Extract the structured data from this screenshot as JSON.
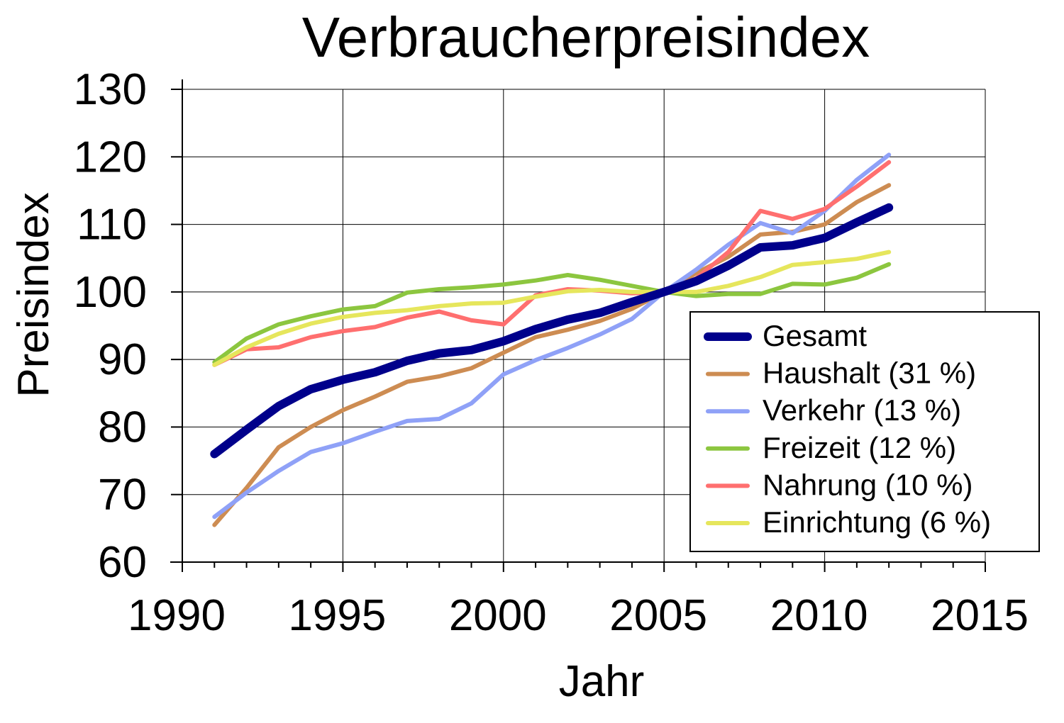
{
  "chart_data": {
    "type": "line",
    "title": "Verbraucherpreisindex",
    "xlabel": "Jahr",
    "ylabel": "Preisindex",
    "xlim": [
      1990,
      2015
    ],
    "ylim": [
      60,
      130
    ],
    "x_ticks": [
      1990,
      1995,
      2000,
      2005,
      2010,
      2015
    ],
    "y_ticks": [
      60,
      70,
      80,
      90,
      100,
      110,
      120,
      130
    ],
    "grid": true,
    "legend_position": "right",
    "x": [
      1991,
      1992,
      1993,
      1994,
      1995,
      1996,
      1997,
      1998,
      1999,
      2000,
      2001,
      2002,
      2003,
      2004,
      2005,
      2006,
      2007,
      2008,
      2009,
      2010,
      2011,
      2012
    ],
    "series": [
      {
        "name": "Gesamt",
        "color": "#00008b",
        "width": 12,
        "values": [
          76.0,
          79.6,
          83.1,
          85.6,
          87.0,
          88.1,
          89.8,
          90.9,
          91.4,
          92.7,
          94.5,
          95.9,
          96.9,
          98.5,
          100.0,
          101.6,
          103.9,
          106.6,
          106.9,
          108.0,
          110.3,
          112.5
        ]
      },
      {
        "name": "Haushalt (31 %)",
        "color": "#cd8c52",
        "width": 6,
        "values": [
          65.5,
          71.0,
          77.0,
          80.0,
          82.5,
          84.5,
          86.7,
          87.5,
          88.7,
          91.0,
          93.3,
          94.4,
          95.7,
          97.5,
          100.0,
          102.8,
          105.2,
          108.5,
          108.9,
          110.0,
          113.3,
          115.8
        ]
      },
      {
        "name": "Verkehr (13 %)",
        "color": "#8fa1f7",
        "width": 6,
        "values": [
          66.7,
          70.3,
          73.5,
          76.3,
          77.6,
          79.3,
          80.9,
          81.2,
          83.5,
          87.8,
          89.9,
          91.7,
          93.7,
          96.0,
          100.0,
          103.3,
          107.0,
          110.2,
          108.7,
          112.0,
          116.6,
          120.3
        ]
      },
      {
        "name": "Freizeit (12 %)",
        "color": "#8cc63f",
        "width": 6,
        "values": [
          89.6,
          93.1,
          95.2,
          96.4,
          97.4,
          97.9,
          99.9,
          100.4,
          100.7,
          101.1,
          101.7,
          102.5,
          101.8,
          100.9,
          100.0,
          99.4,
          99.7,
          99.7,
          101.2,
          101.1,
          102.1,
          104.1
        ]
      },
      {
        "name": "Nahrung (10 %)",
        "color": "#ff6f6f",
        "width": 6,
        "values": [
          89.2,
          91.5,
          91.8,
          93.3,
          94.2,
          94.8,
          96.2,
          97.1,
          95.8,
          95.2,
          99.5,
          100.4,
          100.2,
          99.8,
          100.0,
          102.0,
          105.9,
          112.0,
          110.8,
          112.3,
          115.6,
          119.2
        ]
      },
      {
        "name": "Einrichtung (6 %)",
        "color": "#e6e65c",
        "width": 6,
        "values": [
          89.2,
          91.8,
          93.8,
          95.3,
          96.3,
          96.9,
          97.3,
          97.9,
          98.3,
          98.4,
          99.3,
          100.1,
          100.3,
          100.0,
          100.0,
          100.0,
          100.9,
          102.2,
          104.0,
          104.4,
          104.9,
          105.9
        ]
      }
    ]
  }
}
